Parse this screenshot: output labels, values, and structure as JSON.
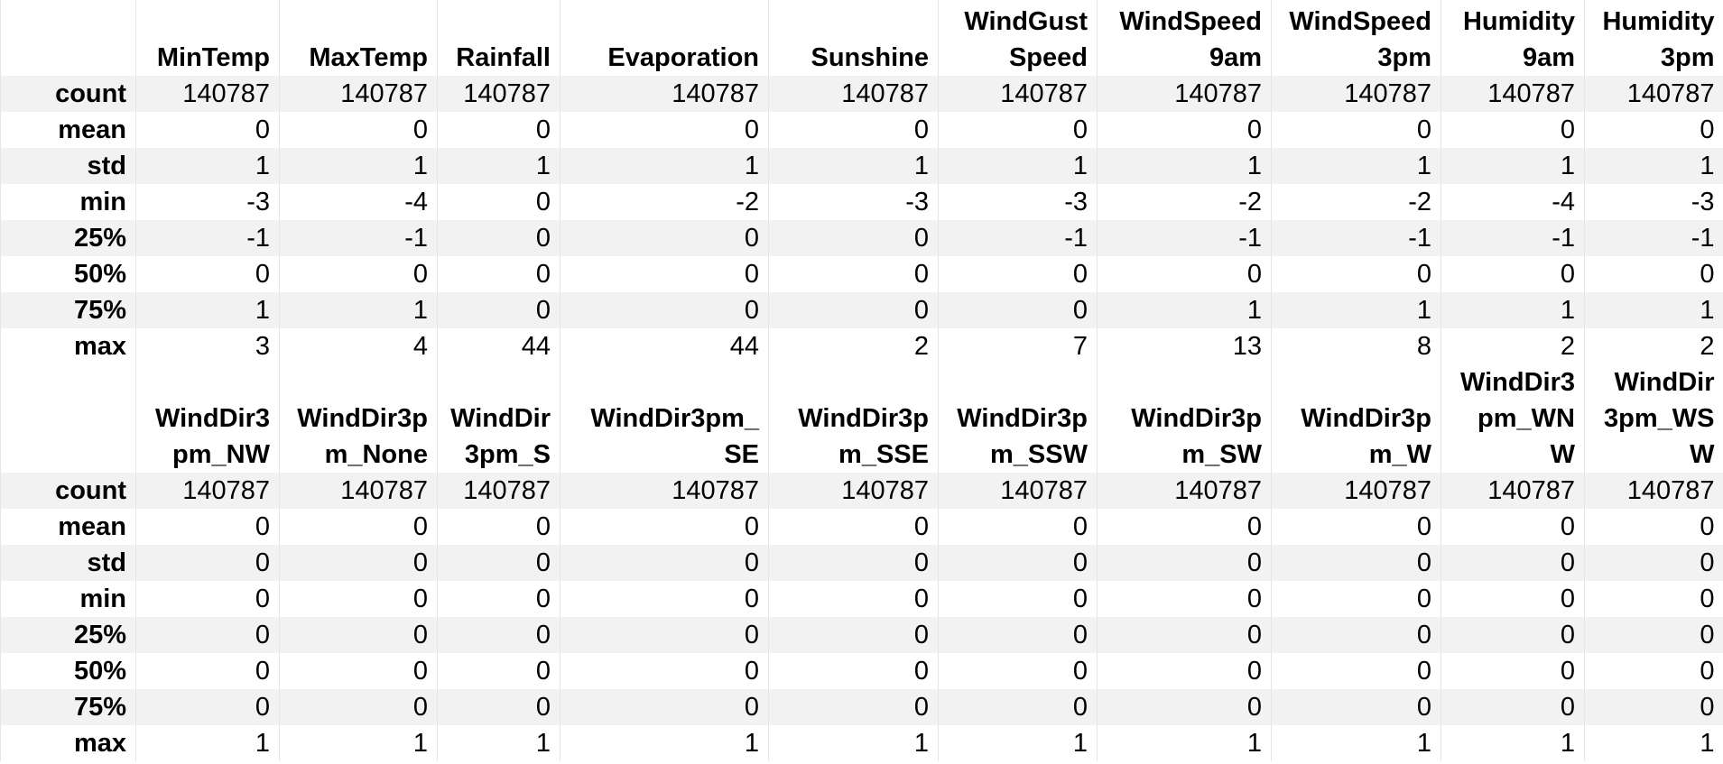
{
  "sections": [
    {
      "columns": [
        [
          "MinTemp"
        ],
        [
          "MaxTemp"
        ],
        [
          "Rainfall"
        ],
        [
          "Evaporation"
        ],
        [
          "Sunshine"
        ],
        [
          "WindGust",
          "Speed"
        ],
        [
          "WindSpeed",
          "9am"
        ],
        [
          "WindSpeed",
          "3pm"
        ],
        [
          "Humidity",
          "9am"
        ],
        [
          "Humidity",
          "3pm"
        ]
      ],
      "rows": [
        {
          "label": "count",
          "values": [
            "140787",
            "140787",
            "140787",
            "140787",
            "140787",
            "140787",
            "140787",
            "140787",
            "140787",
            "140787"
          ]
        },
        {
          "label": "mean",
          "values": [
            "0",
            "0",
            "0",
            "0",
            "0",
            "0",
            "0",
            "0",
            "0",
            "0"
          ]
        },
        {
          "label": "std",
          "values": [
            "1",
            "1",
            "1",
            "1",
            "1",
            "1",
            "1",
            "1",
            "1",
            "1"
          ]
        },
        {
          "label": "min",
          "values": [
            "-3",
            "-4",
            "0",
            "-2",
            "-3",
            "-3",
            "-2",
            "-2",
            "-4",
            "-3"
          ]
        },
        {
          "label": "25%",
          "values": [
            "-1",
            "-1",
            "0",
            "0",
            "0",
            "-1",
            "-1",
            "-1",
            "-1",
            "-1"
          ]
        },
        {
          "label": "50%",
          "values": [
            "0",
            "0",
            "0",
            "0",
            "0",
            "0",
            "0",
            "0",
            "0",
            "0"
          ]
        },
        {
          "label": "75%",
          "values": [
            "1",
            "1",
            "0",
            "0",
            "0",
            "0",
            "1",
            "1",
            "1",
            "1"
          ]
        },
        {
          "label": "max",
          "values": [
            "3",
            "4",
            "44",
            "44",
            "2",
            "7",
            "13",
            "8",
            "2",
            "2"
          ]
        }
      ]
    },
    {
      "columns": [
        [
          "WindDir3",
          "pm_NW"
        ],
        [
          "WindDir3p",
          "m_None"
        ],
        [
          "WindDir",
          "3pm_S"
        ],
        [
          "WindDir3pm_",
          "SE"
        ],
        [
          "WindDir3p",
          "m_SSE"
        ],
        [
          "WindDir3p",
          "m_SSW"
        ],
        [
          "WindDir3p",
          "m_SW"
        ],
        [
          "WindDir3p",
          "m_W"
        ],
        [
          "WindDir3",
          "pm_WN",
          "W"
        ],
        [
          "WindDir",
          "3pm_WS",
          "W"
        ]
      ],
      "rows": [
        {
          "label": "count",
          "values": [
            "140787",
            "140787",
            "140787",
            "140787",
            "140787",
            "140787",
            "140787",
            "140787",
            "140787",
            "140787"
          ]
        },
        {
          "label": "mean",
          "values": [
            "0",
            "0",
            "0",
            "0",
            "0",
            "0",
            "0",
            "0",
            "0",
            "0"
          ]
        },
        {
          "label": "std",
          "values": [
            "0",
            "0",
            "0",
            "0",
            "0",
            "0",
            "0",
            "0",
            "0",
            "0"
          ]
        },
        {
          "label": "min",
          "values": [
            "0",
            "0",
            "0",
            "0",
            "0",
            "0",
            "0",
            "0",
            "0",
            "0"
          ]
        },
        {
          "label": "25%",
          "values": [
            "0",
            "0",
            "0",
            "0",
            "0",
            "0",
            "0",
            "0",
            "0",
            "0"
          ]
        },
        {
          "label": "50%",
          "values": [
            "0",
            "0",
            "0",
            "0",
            "0",
            "0",
            "0",
            "0",
            "0",
            "0"
          ]
        },
        {
          "label": "75%",
          "values": [
            "0",
            "0",
            "0",
            "0",
            "0",
            "0",
            "0",
            "0",
            "0",
            "0"
          ]
        },
        {
          "label": "max",
          "values": [
            "1",
            "1",
            "1",
            "1",
            "1",
            "1",
            "1",
            "1",
            "1",
            "1"
          ]
        }
      ]
    }
  ],
  "colors": {
    "band": "#f2f2f2",
    "grid": "#e6e6e6",
    "text": "#000000"
  }
}
